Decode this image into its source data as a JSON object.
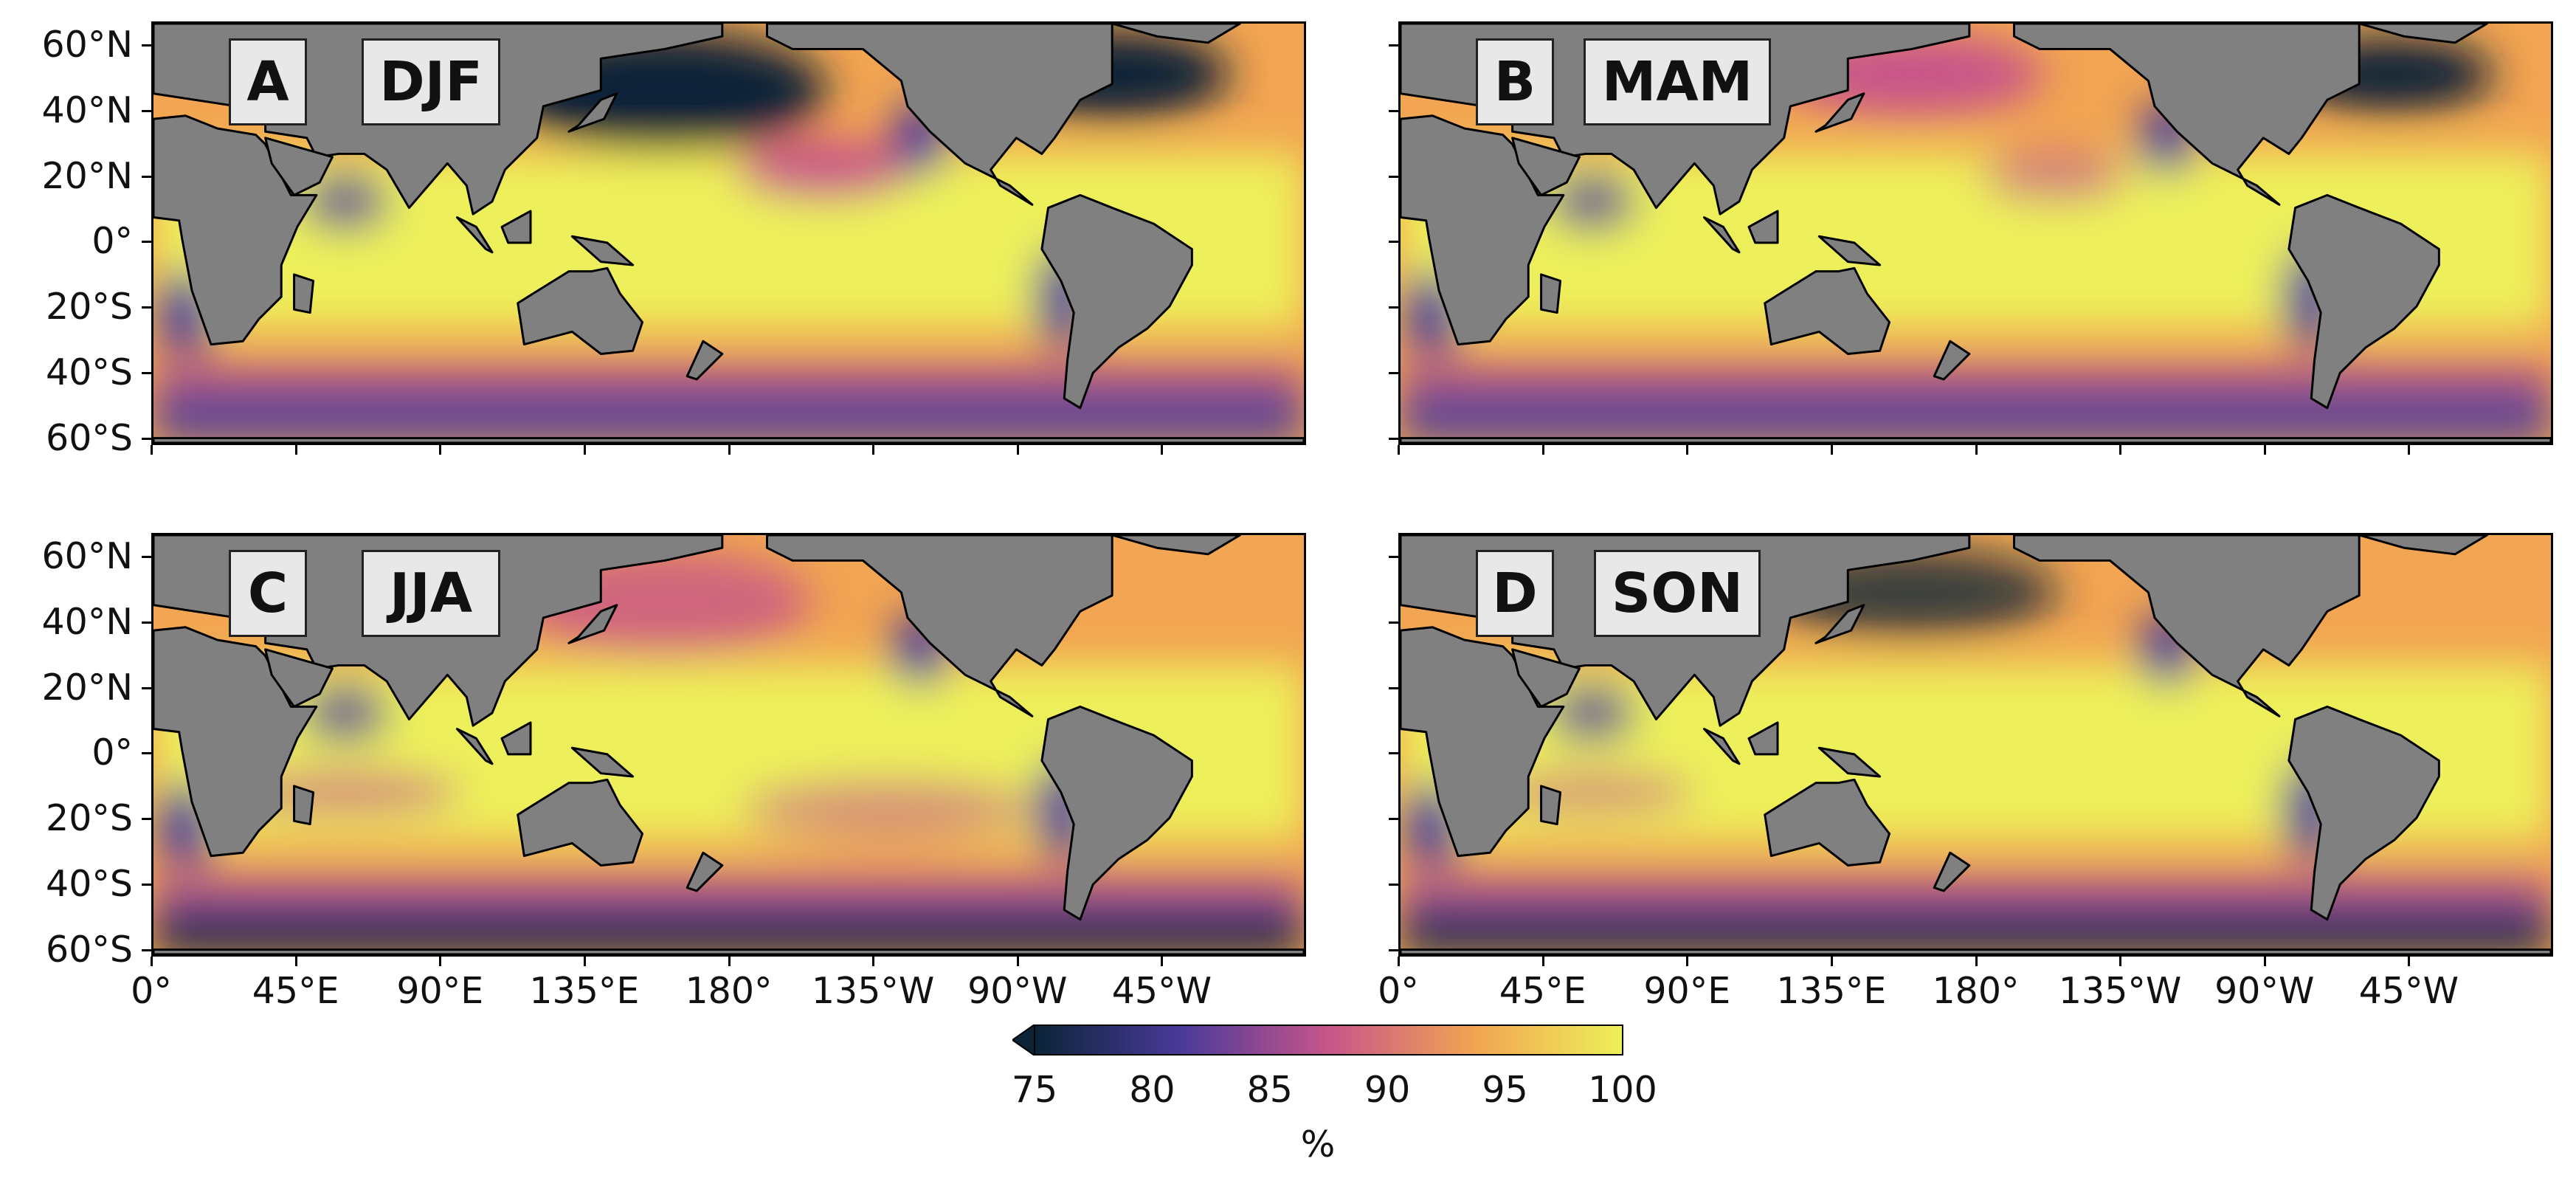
{
  "chart_data": {
    "type": "map",
    "panels": [
      {
        "letter": "A",
        "season": "DJF"
      },
      {
        "letter": "B",
        "season": "MAM"
      },
      {
        "letter": "C",
        "season": "JJA"
      },
      {
        "letter": "D",
        "season": "SON"
      }
    ],
    "y_ticks": [
      "60°N",
      "40°N",
      "20°N",
      "0°",
      "20°S",
      "40°S",
      "60°S"
    ],
    "x_ticks": [
      "0°",
      "45°E",
      "90°E",
      "135°E",
      "180°",
      "135°W",
      "90°W",
      "45°W"
    ],
    "colorbar": {
      "ticks": [
        "75",
        "80",
        "85",
        "90",
        "95",
        "100"
      ],
      "range": [
        75,
        100
      ],
      "extend": "min",
      "unit": "%"
    },
    "colors": {
      "land": "#808080",
      "low": "#0b2437",
      "mid_low": "#4a3a9a",
      "mid": "#c7558a",
      "mid_high": "#f2a552",
      "high": "#edf05a"
    }
  }
}
